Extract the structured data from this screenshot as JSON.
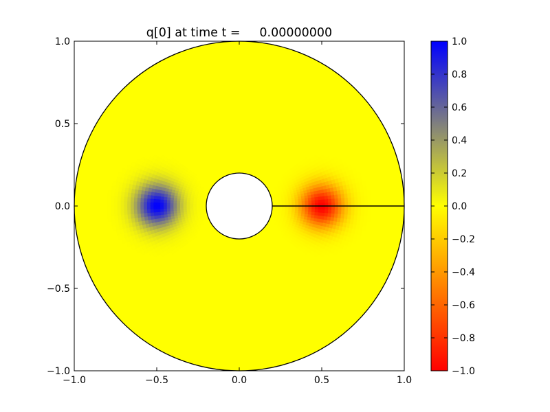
{
  "chart_data": {
    "type": "heatmap",
    "title": "q[0] at time t =     0.00000000",
    "xlabel": "",
    "ylabel": "",
    "xlim": [
      -1.0,
      1.0
    ],
    "ylim": [
      -1.0,
      1.0
    ],
    "x_ticks": [
      -1.0,
      -0.5,
      0.0,
      0.5,
      1.0
    ],
    "x_tick_labels": [
      "−1.0",
      "−0.5",
      "0.0",
      "0.5",
      "1.0"
    ],
    "y_ticks": [
      -1.0,
      -0.5,
      0.0,
      0.5,
      1.0
    ],
    "y_tick_labels": [
      "−1.0",
      "−0.5",
      "0.0",
      "0.5",
      "1.0"
    ],
    "grid": false,
    "domain": {
      "shape": "annulus",
      "inner_radius": 0.2,
      "outer_radius": 1.0,
      "center": [
        0.0,
        0.0
      ],
      "cut_line": {
        "from": [
          0.2,
          0.0
        ],
        "to": [
          1.0,
          0.0
        ]
      }
    },
    "field": {
      "background_value": 0.0,
      "blobs": [
        {
          "center": [
            -0.5,
            0.0
          ],
          "peak_value": 1.0
        },
        {
          "center": [
            0.5,
            0.0
          ],
          "peak_value": -1.0
        }
      ]
    },
    "colorbar": {
      "min": -1.0,
      "max": 1.0,
      "ticks": [
        -1.0,
        -0.8,
        -0.6,
        -0.4,
        -0.2,
        0.0,
        0.2,
        0.4,
        0.6,
        0.8,
        1.0
      ],
      "tick_labels": [
        "−1.0",
        "−0.8",
        "−0.6",
        "−0.4",
        "−0.2",
        "0.0",
        "0.2",
        "0.4",
        "0.6",
        "0.8",
        "1.0"
      ],
      "color_stops": [
        {
          "value": -1.0,
          "color": "#ff0000"
        },
        {
          "value": -0.5,
          "color": "#ff7f00"
        },
        {
          "value": 0.0,
          "color": "#ffff00"
        },
        {
          "value": 0.5,
          "color": "#7f7f7f"
        },
        {
          "value": 1.0,
          "color": "#0000ff"
        }
      ]
    }
  }
}
